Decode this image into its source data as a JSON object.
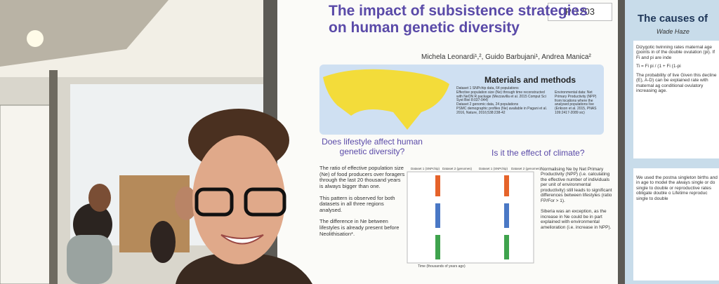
{
  "poster_number": "P-1203",
  "poster": {
    "title": "The impact of subsistence strategies on human genetic diversity",
    "authors": "Michela Leonardi¹,², Guido Barbujani¹, Andrea Manica²",
    "materials_heading": "Materials and methods",
    "materials_text": [
      "Dataset 1 SNPchip data, 64 populations",
      "Effective population size (Ne) through time reconstructed with NeON R package (Mezzavilla et al. 2015 Comput Sci Syst Biol 8:037-044)",
      "Dataset 2 genomic data, 24 populations",
      "PSMC demographic profiles (Ne) available in Pagani et al. 2016, Nature, 2016;538:238-42"
    ],
    "environment_text": "Environmental data: Net Primary Productivity (NPP) from locations where the analysed populations live (Erikson et al. 2015, PNAS 109:2417-2089 sic)",
    "question_1": "Does lifestyle affect human genetic diversity?",
    "question_2": "Is it the effect of climate?",
    "left_text": [
      "The ratio of effective population size (Ne) of food producers over foragers through the last 20 thousand years is always bigger than one.",
      "This pattern is observed for both datasets in all three regions analysed.",
      "The difference in Ne between lifestyles is already present before Neolithisation*."
    ],
    "plot_headers": [
      "Dataset 1 (SNPchip)",
      "Dataset 2 (genomes)",
      "Dataset 1 (SNPchip)",
      "Dataset 2 (genomes)"
    ],
    "x_axis_label": "Time (thousands of years ago)",
    "right_text": [
      "Normalising Ne by Net Primary Productivity (NPP) (i.e. calculating the effective number of individuals per unit of environmental productivity) still leads to significant differences between lifestyles (ratio FP/For > 1).",
      "Siberia was an exception, as the increase in Ne could be in part explained with environmental amelioration (i.e. increase in NPP)."
    ]
  },
  "right_poster": {
    "title": "The causes of",
    "author": "Wade Haze",
    "text": [
      "Dizygotic twinning rates maternal age (points in of the double ovulation (pi). If Fi and pi are inde",
      "Ti = Fi pi / (1 + Fi (1-pi",
      "The probability of live Given this decline (E), A-D) can be explained rate with maternal ag conditional ovulatory increasing age.",
      "We used the postna singleton births and in age to model the always single or do single to double or reproductive rates obligate double o Lifetime reproduc single to double"
    ]
  }
}
